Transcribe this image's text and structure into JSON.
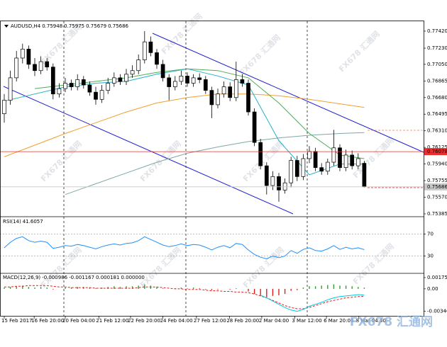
{
  "watermark": "FX678 汇通网",
  "chart_data": [
    {
      "type": "candlestick",
      "title": "AUDUSD,H4",
      "header_values": [
        0.75948,
        0.75975,
        0.75679,
        0.75686
      ],
      "ylim": [
        0.75361,
        0.7753
      ],
      "yticks": [
        {
          "value": 0.7742,
          "label": "0.77420"
        },
        {
          "value": 0.7723,
          "label": "0.77230"
        },
        {
          "value": 0.7705,
          "label": "0.77050"
        },
        {
          "value": 0.76865,
          "label": "0.76865"
        },
        {
          "value": 0.7668,
          "label": "0.76680"
        },
        {
          "value": 0.76495,
          "label": "0.76495"
        },
        {
          "value": 0.7631,
          "label": "0.76310"
        },
        {
          "value": 0.76125,
          "label": "0.76125"
        },
        {
          "value": 0.7594,
          "label": "0.75940"
        },
        {
          "value": 0.75755,
          "label": "0.75755"
        },
        {
          "value": 0.7557,
          "label": "0.75570"
        },
        {
          "value": 0.75385,
          "label": "0.75385"
        }
      ],
      "xticks": [
        {
          "value": 0,
          "label": "15 Feb 2017"
        },
        {
          "value": 4.9,
          "label": "16 Feb 20:00"
        },
        {
          "value": 10,
          "label": "20 Feb 04:00"
        },
        {
          "value": 15.5,
          "label": "21 Feb 12:00"
        },
        {
          "value": 20.7,
          "label": "22 Feb 20:00"
        },
        {
          "value": 26,
          "label": "24 Feb 04:00"
        },
        {
          "value": 31.5,
          "label": "27 Feb 12:00"
        },
        {
          "value": 36.9,
          "label": "28 Feb 20:00"
        },
        {
          "value": 42.2,
          "label": "2 Mar 04:00"
        },
        {
          "value": 47.6,
          "label": "3 Mar 12:00"
        },
        {
          "value": 52.8,
          "label": "6 Mar 20:00"
        },
        {
          "value": 58.1,
          "label": "8 Mar 04:00"
        }
      ],
      "open": [
        0.765,
        0.7665,
        0.769,
        0.7712,
        0.7722,
        0.7705,
        0.7698,
        0.7708,
        0.7702,
        0.7672,
        0.7678,
        0.7684,
        0.768,
        0.7688,
        0.7682,
        0.7674,
        0.7666,
        0.7676,
        0.7684,
        0.769,
        0.7686,
        0.7694,
        0.7698,
        0.771,
        0.773,
        0.7718,
        0.7705,
        0.769,
        0.768,
        0.7686,
        0.7692,
        0.7684,
        0.769,
        0.7688,
        0.7676,
        0.766,
        0.7672,
        0.768,
        0.7668,
        0.7688,
        0.7684,
        0.7652,
        0.7618,
        0.7592,
        0.757,
        0.758,
        0.7565,
        0.7573,
        0.7598,
        0.758,
        0.76,
        0.7608,
        0.759,
        0.7586,
        0.7596,
        0.7612,
        0.759,
        0.7604,
        0.7592,
        0.75948
      ],
      "high": [
        0.7672,
        0.7698,
        0.772,
        0.7728,
        0.7726,
        0.7712,
        0.7714,
        0.7712,
        0.7706,
        0.7684,
        0.769,
        0.7688,
        0.7694,
        0.7692,
        0.7686,
        0.768,
        0.7682,
        0.769,
        0.7696,
        0.7694,
        0.77,
        0.7704,
        0.7716,
        0.7742,
        0.7736,
        0.7722,
        0.771,
        0.7694,
        0.7692,
        0.7698,
        0.7696,
        0.7694,
        0.7695,
        0.7692,
        0.768,
        0.7678,
        0.7686,
        0.7685,
        0.7708,
        0.7694,
        0.7688,
        0.7656,
        0.7622,
        0.7596,
        0.7586,
        0.7584,
        0.7578,
        0.7602,
        0.7603,
        0.7605,
        0.7614,
        0.7612,
        0.7595,
        0.76,
        0.7632,
        0.7616,
        0.761,
        0.7609,
        0.7606,
        0.75975
      ],
      "low": [
        0.764,
        0.766,
        0.7686,
        0.7706,
        0.77,
        0.7692,
        0.7694,
        0.7698,
        0.7666,
        0.7668,
        0.7674,
        0.7676,
        0.7676,
        0.7678,
        0.767,
        0.766,
        0.7662,
        0.7672,
        0.768,
        0.7682,
        0.7682,
        0.769,
        0.7694,
        0.7706,
        0.7714,
        0.77,
        0.7686,
        0.7665,
        0.7676,
        0.7682,
        0.768,
        0.768,
        0.7684,
        0.7672,
        0.7645,
        0.7656,
        0.7668,
        0.7664,
        0.7664,
        0.768,
        0.7648,
        0.7614,
        0.7588,
        0.756,
        0.7565,
        0.7552,
        0.7561,
        0.7568,
        0.7575,
        0.7576,
        0.7595,
        0.7586,
        0.7582,
        0.7582,
        0.7592,
        0.7586,
        0.7586,
        0.7588,
        0.7588,
        0.75679
      ],
      "close": [
        0.7665,
        0.769,
        0.7712,
        0.7722,
        0.7705,
        0.7698,
        0.7708,
        0.7702,
        0.7672,
        0.7678,
        0.7684,
        0.768,
        0.7688,
        0.7682,
        0.7674,
        0.7666,
        0.7676,
        0.7684,
        0.769,
        0.7686,
        0.7694,
        0.7698,
        0.771,
        0.773,
        0.7718,
        0.7705,
        0.769,
        0.768,
        0.7686,
        0.7692,
        0.7684,
        0.769,
        0.7688,
        0.7676,
        0.766,
        0.7672,
        0.768,
        0.7668,
        0.7688,
        0.7684,
        0.7652,
        0.7618,
        0.7592,
        0.757,
        0.758,
        0.7565,
        0.7573,
        0.7598,
        0.758,
        0.76,
        0.7608,
        0.759,
        0.7586,
        0.7596,
        0.7612,
        0.759,
        0.7604,
        0.7592,
        0.76,
        0.75686
      ],
      "series": [
        {
          "color": "#f0a030",
          "x": [
            0,
            5,
            10,
            15,
            20,
            25,
            30,
            35,
            40,
            45,
            50,
            55,
            59
          ],
          "values": [
            0.7602,
            0.7615,
            0.7628,
            0.764,
            0.7652,
            0.7662,
            0.7668,
            0.7672,
            0.7672,
            0.767,
            0.7666,
            0.7661,
            0.7657
          ]
        },
        {
          "color": "#7fa7a7",
          "x": [
            0,
            5,
            10,
            15,
            20,
            25,
            30,
            35,
            40,
            45,
            50,
            55,
            59
          ],
          "values": [
            null,
            null,
            0.756,
            0.7572,
            0.7584,
            0.7596,
            0.7606,
            0.7613,
            0.7619,
            0.7623,
            0.7626,
            0.7628,
            0.7629
          ]
        },
        {
          "color": "#4caf50",
          "x": [
            0,
            5,
            10,
            15,
            20,
            25,
            30,
            35,
            40,
            45,
            50,
            55,
            59
          ],
          "values": [
            null,
            0.7678,
            0.7682,
            0.7686,
            0.769,
            0.7696,
            0.77,
            0.7698,
            0.769,
            0.7662,
            0.7628,
            0.7604,
            0.76
          ]
        },
        {
          "color": "#20b0c8",
          "x": [
            0,
            5,
            10,
            15,
            20,
            25,
            30,
            35,
            40,
            45,
            50,
            55,
            59
          ],
          "values": [
            0.7664,
            0.7672,
            0.768,
            0.7684,
            0.7686,
            0.7694,
            0.77,
            0.7692,
            0.7682,
            0.762,
            0.7582,
            0.7594,
            0.7594
          ]
        }
      ],
      "levels": [
        {
          "value": 0.76078,
          "color": "#e53030"
        },
        {
          "value": 0.75686,
          "color": "#c8c8c8"
        }
      ]
    },
    {
      "type": "line",
      "title": "RSI(14)",
      "header_values": [
        41.6057
      ],
      "ylim": [
        0,
        100
      ],
      "yticks": [
        30,
        70
      ],
      "grid": true,
      "color": "#1e90ff",
      "values": [
        45,
        55,
        62,
        65,
        58,
        55,
        57,
        55,
        44,
        46,
        49,
        48,
        51,
        49,
        46,
        43,
        47,
        50,
        52,
        50,
        53,
        54,
        58,
        65,
        60,
        55,
        50,
        47,
        49,
        52,
        49,
        51,
        50,
        46,
        41,
        46,
        49,
        45,
        53,
        51,
        41,
        33,
        28,
        25,
        30,
        27,
        30,
        40,
        35,
        42,
        45,
        40,
        39,
        43,
        49,
        42,
        46,
        43,
        45,
        41.6057
      ]
    },
    {
      "type": "macd",
      "title": "MACD(12,26,9)",
      "header_values": [
        -0.000986,
        -0.001167,
        0.000181,
        {
          "value": 0,
          "label": "0.000000"
        }
      ],
      "ylim": [
        -0.0042,
        0.0023
      ],
      "yticks": [
        0.001757,
        {
          "value": 0,
          "label": "0.00"
        },
        -0.003464
      ],
      "histogram": {
        "up_color": "#2e9e2e",
        "down_color": "#e02020",
        "values": [
          0.0002,
          0.0003,
          0.0004,
          0.0005,
          0.0003,
          0.0002,
          0.0003,
          0.0002,
          -0.0001,
          0.0,
          0.0002,
          0.0002,
          0.0003,
          0.0003,
          0.0002,
          0.0001,
          0.0002,
          0.0003,
          0.0004,
          0.0003,
          0.0004,
          0.0004,
          0.0005,
          0.0007,
          0.0005,
          0.0003,
          0.0001,
          0.0,
          0.0001,
          0.0002,
          0.0001,
          0.0002,
          0.0001,
          -0.0001,
          -0.0002,
          -0.0001,
          0.0,
          -0.0001,
          0.0001,
          0.0,
          -0.0004,
          -0.0008,
          -0.0011,
          -0.0013,
          -0.0011,
          -0.001,
          -0.0008,
          -0.0003,
          -0.0002,
          0.0002,
          0.0004,
          0.0004,
          0.0005,
          0.0006,
          0.0007,
          0.0005,
          0.0005,
          0.0004,
          0.0003,
          0.000181
        ]
      },
      "series": [
        {
          "color": "#e02020",
          "dashed": true,
          "values": [
            0.0003,
            0.0003,
            0.0004,
            0.0004,
            0.0005,
            0.0005,
            0.0005,
            0.0005,
            0.0004,
            0.0003,
            0.0003,
            0.0002,
            0.0002,
            0.0002,
            0.0002,
            0.0001,
            0.0001,
            0.0001,
            0.0001,
            0.0001,
            0.0001,
            0.0001,
            0.0002,
            0.0003,
            0.0003,
            0.0003,
            0.0002,
            0.0001,
            0.0,
            0.0,
            -0.0001,
            -0.0001,
            -0.0001,
            -0.0002,
            -0.0003,
            -0.0003,
            -0.0004,
            -0.0004,
            -0.0005,
            -0.0005,
            -0.0006,
            -0.0008,
            -0.0011,
            -0.0014,
            -0.0018,
            -0.0022,
            -0.0026,
            -0.0029,
            -0.0031,
            -0.0031,
            -0.0029,
            -0.0026,
            -0.0023,
            -0.002,
            -0.0018,
            -0.0016,
            -0.0014,
            -0.0013,
            -0.0012,
            -0.001167
          ]
        },
        {
          "color": "#00c8e0",
          "dashed": false,
          "values": [
            null,
            null,
            null,
            null,
            null,
            null,
            null,
            null,
            null,
            null,
            null,
            null,
            null,
            null,
            null,
            null,
            null,
            null,
            null,
            null,
            null,
            null,
            null,
            null,
            null,
            null,
            null,
            null,
            null,
            null,
            null,
            null,
            null,
            null,
            null,
            null,
            null,
            null,
            null,
            null,
            null,
            null,
            -0.001,
            -0.0014,
            -0.0019,
            -0.0024,
            -0.0029,
            -0.0033,
            -0.0035,
            -0.0032,
            -0.0027,
            -0.0024,
            -0.0021,
            -0.0017,
            -0.0014,
            -0.0012,
            -0.0011,
            -0.001,
            -0.0009,
            -0.000986
          ]
        }
      ]
    }
  ]
}
